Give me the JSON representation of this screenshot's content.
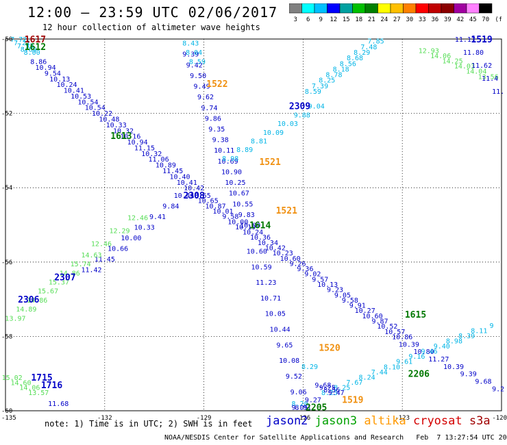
{
  "header": {
    "title": "12:00 – 23:59 UTC 02/06/2017",
    "subtitle": "12 hour collection of altimeter wave heights"
  },
  "scale": {
    "colors": [
      "#808080",
      "#00ffff",
      "#00c0ff",
      "#0000ff",
      "#00a0a0",
      "#00c000",
      "#008000",
      "#ffff00",
      "#ffc000",
      "#ff8000",
      "#ff0000",
      "#c00000",
      "#8b0000",
      "#a000a0",
      "#ff80ff",
      "#000000"
    ],
    "ticks": [
      "3",
      "6",
      "9",
      "12",
      "15",
      "18",
      "21",
      "24",
      "27",
      "30",
      "33",
      "36",
      "39",
      "42",
      "45",
      "70",
      "(ft)"
    ]
  },
  "axes": {
    "lon_labels": [
      "-135",
      "-132",
      "-129",
      "-126",
      "-123",
      "-120"
    ],
    "lat_labels": [
      "-50",
      "-52",
      "-54",
      "-56",
      "-58",
      "-60"
    ]
  },
  "palette": {
    "jason2": "#0000c8",
    "jason3": "#00a000",
    "altika": "#ff9900",
    "cryosat": "#d40000",
    "s3a": "#a00000",
    "cyan": "#00b4e6",
    "lightgreen": "#55dd55",
    "darkgreen": "#007800",
    "orange": "#f09010"
  },
  "tracks": [
    {
      "color": "cyan",
      "from": [
        -134.6,
        -50.0
      ],
      "to": [
        -134.2,
        -50.35
      ],
      "values": [
        "7.72",
        "7.21",
        "7.53",
        "8.89",
        "8.00"
      ]
    },
    {
      "color": "jason2",
      "from": [
        -134.0,
        -50.6
      ],
      "to": [
        -129.3,
        -54.0
      ],
      "values": [
        "8.86",
        "10.94",
        "9.54",
        "10.13",
        "10.24",
        "10.41",
        "10.53",
        "10.54",
        "10.54",
        "10.22",
        "10.48",
        "10.33",
        "10.32",
        "10.16",
        "10.94",
        "11.15",
        "10.32",
        "11.06",
        "10.89",
        "11.45",
        "10.40",
        "10.41",
        "10.42"
      ]
    },
    {
      "color": "jason2",
      "from": [
        -129.1,
        -54.2
      ],
      "to": [
        -123.0,
        -58.0
      ],
      "values": [
        "10.55",
        "10.65",
        "10.87",
        "10.01",
        "9.58",
        "10.00",
        "10.19",
        "10.24",
        "10.36",
        "10.34",
        "10.42",
        "10.23",
        "10.60",
        "9.26",
        "9.36",
        "9.02",
        "9.57",
        "10.13",
        "9.23",
        "9.05",
        "9.58",
        "9.91",
        "10.27",
        "10.60",
        "9.87",
        "10.52",
        "10.57",
        "10.86"
      ]
    },
    {
      "color": "jason2",
      "from": [
        -122.8,
        -58.2
      ],
      "to": [
        -120.1,
        -59.4
      ],
      "values": [
        "10.39",
        "10.80",
        "11.27",
        "10.39",
        "9.39",
        "9.68",
        "9.2"
      ]
    },
    {
      "color": "jason2",
      "from": [
        -129.4,
        -50.4
      ],
      "to": [
        -127.6,
        -55.0
      ],
      "values": [
        "9.39",
        "9.42",
        "9.50",
        "9.49",
        "9.62",
        "9.74",
        "9.86",
        "9.35",
        "9.38",
        "10.11",
        "10.69",
        "10.90",
        "10.25",
        "10.67",
        "10.55",
        "9.83",
        "10.00"
      ]
    },
    {
      "color": "jason2",
      "from": [
        -127.4,
        -55.7
      ],
      "to": [
        -126.0,
        -59.9
      ],
      "values": [
        "10.60",
        "10.59",
        "11.23",
        "10.71",
        "10.05",
        "10.44",
        "9.65",
        "10.08",
        "9.52",
        "9.06",
        "8.91"
      ]
    },
    {
      "color": "jason2",
      "from": [
        -132.4,
        -56.2
      ],
      "to": [
        -129.6,
        -54.2
      ],
      "values": [
        "11.42",
        "11.45",
        "10.66",
        "10.00",
        "10.33",
        "9.41",
        "9.84",
        "10.44"
      ]
    },
    {
      "color": "cyan",
      "from": [
        -129.4,
        -50.1
      ],
      "to": [
        -129.2,
        -50.6
      ],
      "values": [
        "8.43",
        "8.04",
        "8.59"
      ]
    },
    {
      "color": "cyan",
      "from": [
        -128.2,
        -53.2
      ],
      "to": [
        -125.6,
        -51.8
      ],
      "values": [
        "8.98",
        "8.89",
        "8.81",
        "10.09",
        "10.03",
        "9.88",
        "9.04"
      ]
    },
    {
      "color": "cyan",
      "from": [
        -125.7,
        -51.4
      ],
      "to": [
        -123.8,
        -50.05
      ],
      "values": [
        "8.59",
        "7.39",
        "8.25",
        "8.78",
        "8.18",
        "8.56",
        "8.68",
        "8.29",
        "7.48",
        "7.85"
      ]
    },
    {
      "color": "cyan",
      "from": [
        -126.1,
        -59.8
      ],
      "to": [
        -125.8,
        -58.8
      ],
      "values": [
        "8.20",
        "8.29"
      ]
    },
    {
      "color": "cyan",
      "from": [
        -125.2,
        -59.5
      ],
      "to": [
        -120.3,
        -57.7
      ],
      "values": [
        "8.25",
        "8.25",
        "7.67",
        "8.24",
        "7.44",
        "8.10",
        "9.61",
        "9.16",
        "9.46",
        "9.40",
        "8.98",
        "8.39",
        "8.11",
        "9"
      ]
    },
    {
      "color": "jason2",
      "from": [
        -125.4,
        -59.3
      ],
      "to": [
        -125.0,
        -59.5
      ],
      "values": [
        "9.68",
        "9.25",
        "8.56",
        "9.47"
      ]
    },
    {
      "color": "jason2",
      "from": [
        -126.1,
        -59.9
      ],
      "to": [
        -125.7,
        -59.7
      ],
      "values": [
        "9.05",
        "9.27"
      ]
    },
    {
      "color": "lightgreen",
      "from": [
        -134.7,
        -57.5
      ],
      "to": [
        -132.4,
        -55.8
      ],
      "values": [
        "13.97",
        "14.89",
        "14.86",
        "15.67",
        "15.37",
        "14.86",
        "15.74",
        "14.63"
      ]
    },
    {
      "color": "lightgreen",
      "from": [
        -132.1,
        -55.5
      ],
      "to": [
        -131.0,
        -54.8
      ],
      "values": [
        "12.46",
        "12.29",
        "12.46"
      ]
    },
    {
      "color": "lightgreen",
      "from": [
        -122.2,
        -50.3
      ],
      "to": [
        -120.4,
        -51.0
      ],
      "values": [
        "12.93",
        "14.06",
        "14.25",
        "14.03",
        "14.04",
        "13.56"
      ]
    },
    {
      "color": "jason2",
      "from": [
        -121.1,
        -50.0
      ],
      "to": [
        -120.1,
        -51.4
      ],
      "values": [
        "11.17",
        "11.80",
        "11.62",
        "11.4",
        "11."
      ]
    },
    {
      "color": "lightgreen",
      "from": [
        -134.8,
        -59.1
      ],
      "to": [
        -134.0,
        -59.5
      ],
      "values": [
        "15.02",
        "14.60",
        "14.06",
        "13.57"
      ]
    },
    {
      "color": "jason2",
      "from": [
        -133.4,
        -59.8
      ],
      "to": [
        -133.4,
        -59.8
      ],
      "values": [
        "11.68"
      ]
    }
  ],
  "pass_labels": [
    {
      "text": "1617",
      "color": "s3a",
      "lon": -134.1,
      "lat": -50.0
    },
    {
      "text": "1612",
      "color": "darkgreen",
      "lon": -134.1,
      "lat": -50.2
    },
    {
      "text": "1519",
      "color": "jason2",
      "lon": -120.6,
      "lat": -50.0
    },
    {
      "text": "1522",
      "color": "orange",
      "lon": -128.6,
      "lat": -51.2
    },
    {
      "text": "2309",
      "color": "jason2",
      "lon": -126.1,
      "lat": -51.8
    },
    {
      "text": "1613",
      "color": "darkgreen",
      "lon": -131.5,
      "lat": -52.6
    },
    {
      "text": "1521",
      "color": "orange",
      "lon": -127.0,
      "lat": -53.3
    },
    {
      "text": "2308",
      "color": "jason2",
      "lon": -129.3,
      "lat": -54.2
    },
    {
      "text": "1521",
      "color": "orange",
      "lon": -126.5,
      "lat": -54.6
    },
    {
      "text": "1614",
      "color": "darkgreen",
      "lon": -127.3,
      "lat": -55.0
    },
    {
      "text": "2307",
      "color": "jason2",
      "lon": -133.2,
      "lat": -56.4
    },
    {
      "text": "2306",
      "color": "jason2",
      "lon": -134.3,
      "lat": -57.0
    },
    {
      "text": "1615",
      "color": "darkgreen",
      "lon": -122.6,
      "lat": -57.4
    },
    {
      "text": "1520",
      "color": "orange",
      "lon": -125.2,
      "lat": -58.3
    },
    {
      "text": "2206",
      "color": "darkgreen",
      "lon": -122.5,
      "lat": -59.0
    },
    {
      "text": "1715",
      "color": "jason2",
      "lon": -133.9,
      "lat": -59.1
    },
    {
      "text": "1716",
      "color": "jason2",
      "lon": -133.6,
      "lat": -59.3
    },
    {
      "text": "1519",
      "color": "orange",
      "lon": -124.5,
      "lat": -59.7
    },
    {
      "text": "2205",
      "color": "darkgreen",
      "lon": -125.6,
      "lat": -59.9
    }
  ],
  "footer": {
    "note": "note: 1) Time is in UTC; 2) SWH is in feet",
    "satellites": [
      {
        "name": "jason2",
        "color": "jason2"
      },
      {
        "name": "jason3",
        "color": "jason3"
      },
      {
        "name": "altika",
        "color": "altika"
      },
      {
        "name": "cryosat",
        "color": "cryosat"
      },
      {
        "name": "s3a",
        "color": "s3a"
      }
    ],
    "credit": "NOAA/NESDIS Center for Satellite Applications and Research   Feb  7 13:27:54 UTC 2017"
  }
}
